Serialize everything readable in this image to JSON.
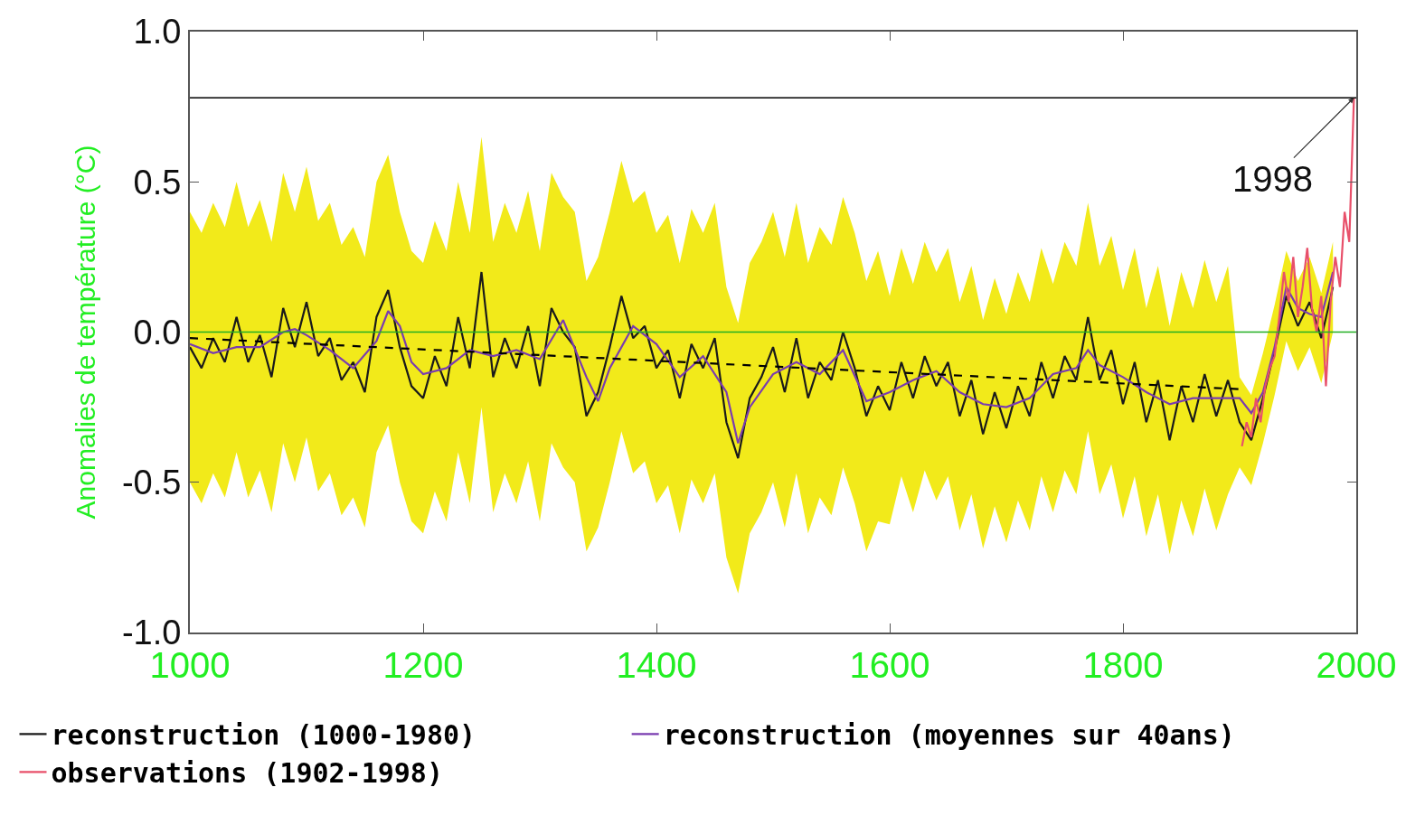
{
  "chart_data": {
    "type": "line",
    "ylabel": "Anomalies de température (°C)",
    "xlim": [
      1000,
      2000
    ],
    "xticks": [
      1000,
      1200,
      1400,
      1600,
      1800,
      2000
    ],
    "ylim": [
      -1,
      1
    ],
    "yticks": [
      {
        "value": -1,
        "label": "-1.0"
      },
      {
        "value": -0.5,
        "label": "-0.5"
      },
      {
        "value": 0,
        "label": "0.0"
      },
      {
        "value": 0.5,
        "label": "0.5"
      },
      {
        "value": 1,
        "label": "1.0"
      }
    ],
    "grid": false,
    "legend": "bottom",
    "marker": "none",
    "line_style": "solid",
    "x": [
      1000,
      1010,
      1020,
      1030,
      1040,
      1050,
      1060,
      1070,
      1080,
      1090,
      1100,
      1110,
      1120,
      1130,
      1140,
      1150,
      1160,
      1170,
      1180,
      1190,
      1200,
      1210,
      1220,
      1230,
      1240,
      1250,
      1260,
      1270,
      1280,
      1290,
      1300,
      1310,
      1320,
      1330,
      1340,
      1350,
      1360,
      1370,
      1380,
      1390,
      1400,
      1410,
      1420,
      1430,
      1440,
      1450,
      1460,
      1470,
      1480,
      1490,
      1500,
      1510,
      1520,
      1530,
      1540,
      1550,
      1560,
      1570,
      1580,
      1590,
      1600,
      1610,
      1620,
      1630,
      1640,
      1650,
      1660,
      1670,
      1680,
      1690,
      1700,
      1710,
      1720,
      1730,
      1740,
      1750,
      1760,
      1770,
      1780,
      1790,
      1800,
      1810,
      1820,
      1830,
      1840,
      1850,
      1860,
      1870,
      1880,
      1890,
      1900,
      1910,
      1920,
      1930,
      1940,
      1950,
      1960,
      1970,
      1980
    ],
    "series": [
      {
        "name": "reconstruction (1000-1980)",
        "color": "#1a1a1a",
        "values": [
          -0.05,
          -0.12,
          -0.02,
          -0.1,
          0.05,
          -0.1,
          -0.01,
          -0.15,
          0.08,
          -0.05,
          0.1,
          -0.08,
          -0.02,
          -0.16,
          -0.1,
          -0.2,
          0.05,
          0.14,
          -0.05,
          -0.18,
          -0.22,
          -0.08,
          -0.18,
          0.05,
          -0.12,
          0.2,
          -0.15,
          -0.02,
          -0.12,
          0.02,
          -0.18,
          0.08,
          0.0,
          -0.05,
          -0.28,
          -0.2,
          -0.05,
          0.12,
          -0.02,
          0.02,
          -0.12,
          -0.06,
          -0.22,
          -0.04,
          -0.12,
          -0.02,
          -0.3,
          -0.42,
          -0.22,
          -0.15,
          -0.05,
          -0.2,
          -0.02,
          -0.22,
          -0.1,
          -0.16,
          0.0,
          -0.12,
          -0.28,
          -0.18,
          -0.26,
          -0.1,
          -0.22,
          -0.08,
          -0.18,
          -0.1,
          -0.28,
          -0.16,
          -0.34,
          -0.2,
          -0.32,
          -0.18,
          -0.28,
          -0.1,
          -0.22,
          -0.08,
          -0.16,
          0.05,
          -0.16,
          -0.06,
          -0.24,
          -0.1,
          -0.3,
          -0.16,
          -0.36,
          -0.18,
          -0.3,
          -0.14,
          -0.28,
          -0.16,
          -0.3,
          -0.36,
          -0.22,
          -0.06,
          0.12,
          0.02,
          0.1,
          -0.02,
          0.15
        ],
        "upper": [
          0.4,
          0.33,
          0.43,
          0.35,
          0.5,
          0.35,
          0.44,
          0.3,
          0.53,
          0.4,
          0.55,
          0.37,
          0.43,
          0.29,
          0.35,
          0.25,
          0.5,
          0.59,
          0.4,
          0.27,
          0.23,
          0.37,
          0.27,
          0.5,
          0.33,
          0.65,
          0.3,
          0.43,
          0.33,
          0.47,
          0.27,
          0.53,
          0.45,
          0.4,
          0.17,
          0.25,
          0.4,
          0.57,
          0.43,
          0.47,
          0.33,
          0.39,
          0.23,
          0.41,
          0.33,
          0.43,
          0.15,
          0.03,
          0.23,
          0.3,
          0.4,
          0.25,
          0.43,
          0.23,
          0.35,
          0.29,
          0.45,
          0.33,
          0.17,
          0.27,
          0.12,
          0.28,
          0.16,
          0.3,
          0.2,
          0.28,
          0.1,
          0.22,
          0.04,
          0.18,
          0.06,
          0.2,
          0.1,
          0.28,
          0.16,
          0.3,
          0.22,
          0.43,
          0.22,
          0.32,
          0.14,
          0.28,
          0.08,
          0.22,
          0.02,
          0.2,
          0.08,
          0.24,
          0.1,
          0.22,
          -0.15,
          -0.21,
          -0.07,
          0.09,
          0.27,
          0.17,
          0.25,
          0.13,
          0.3
        ],
        "lower": [
          -0.5,
          -0.57,
          -0.47,
          -0.55,
          -0.4,
          -0.55,
          -0.46,
          -0.6,
          -0.37,
          -0.5,
          -0.35,
          -0.53,
          -0.47,
          -0.61,
          -0.55,
          -0.65,
          -0.4,
          -0.31,
          -0.5,
          -0.63,
          -0.67,
          -0.53,
          -0.63,
          -0.4,
          -0.57,
          -0.25,
          -0.6,
          -0.47,
          -0.57,
          -0.43,
          -0.63,
          -0.37,
          -0.45,
          -0.5,
          -0.73,
          -0.65,
          -0.5,
          -0.33,
          -0.47,
          -0.43,
          -0.57,
          -0.51,
          -0.67,
          -0.49,
          -0.57,
          -0.47,
          -0.75,
          -0.87,
          -0.67,
          -0.6,
          -0.5,
          -0.65,
          -0.47,
          -0.67,
          -0.55,
          -0.61,
          -0.45,
          -0.57,
          -0.73,
          -0.63,
          -0.64,
          -0.48,
          -0.6,
          -0.46,
          -0.56,
          -0.48,
          -0.66,
          -0.54,
          -0.72,
          -0.58,
          -0.7,
          -0.56,
          -0.66,
          -0.48,
          -0.6,
          -0.46,
          -0.54,
          -0.33,
          -0.54,
          -0.44,
          -0.62,
          -0.48,
          -0.68,
          -0.54,
          -0.74,
          -0.56,
          -0.68,
          -0.52,
          -0.66,
          -0.54,
          -0.45,
          -0.51,
          -0.37,
          -0.21,
          -0.03,
          -0.13,
          -0.05,
          -0.17,
          0.0
        ]
      },
      {
        "name": "reconstruction (moyennes sur 40ans)",
        "color": "#7a3cb0",
        "x": [
          1000,
          1020,
          1040,
          1060,
          1080,
          1090,
          1100,
          1120,
          1140,
          1160,
          1170,
          1180,
          1190,
          1200,
          1220,
          1240,
          1260,
          1280,
          1300,
          1320,
          1340,
          1350,
          1360,
          1380,
          1400,
          1420,
          1440,
          1460,
          1470,
          1480,
          1500,
          1520,
          1540,
          1560,
          1580,
          1600,
          1620,
          1640,
          1660,
          1680,
          1700,
          1720,
          1740,
          1760,
          1770,
          1780,
          1800,
          1820,
          1840,
          1860,
          1880,
          1900,
          1910,
          1920,
          1930,
          1940,
          1950,
          1960,
          1970,
          1980
        ],
        "values": [
          -0.04,
          -0.07,
          -0.05,
          -0.05,
          0.0,
          0.01,
          -0.01,
          -0.06,
          -0.12,
          -0.03,
          0.07,
          0.02,
          -0.1,
          -0.14,
          -0.12,
          -0.06,
          -0.08,
          -0.06,
          -0.09,
          0.04,
          -0.15,
          -0.23,
          -0.12,
          0.02,
          -0.04,
          -0.15,
          -0.08,
          -0.2,
          -0.37,
          -0.25,
          -0.14,
          -0.1,
          -0.14,
          -0.06,
          -0.23,
          -0.2,
          -0.16,
          -0.13,
          -0.2,
          -0.24,
          -0.25,
          -0.22,
          -0.14,
          -0.12,
          -0.06,
          -0.11,
          -0.15,
          -0.2,
          -0.24,
          -0.22,
          -0.22,
          -0.22,
          -0.27,
          -0.2,
          -0.05,
          0.15,
          0.08,
          0.06,
          0.05,
          0.2
        ]
      },
      {
        "name": "observations (1902-1998)",
        "color": "#e8506a",
        "x": [
          1902,
          1906,
          1910,
          1914,
          1918,
          1922,
          1926,
          1930,
          1934,
          1938,
          1942,
          1946,
          1950,
          1954,
          1958,
          1962,
          1966,
          1970,
          1974,
          1978,
          1982,
          1986,
          1990,
          1994,
          1998
        ],
        "values": [
          -0.38,
          -0.3,
          -0.35,
          -0.22,
          -0.3,
          -0.18,
          -0.12,
          -0.08,
          0.05,
          0.2,
          0.1,
          0.25,
          0.05,
          0.15,
          0.28,
          0.08,
          0.0,
          0.12,
          -0.18,
          0.1,
          0.25,
          0.15,
          0.4,
          0.3,
          0.78
        ]
      },
      {
        "type": "line",
        "color": "#000000",
        "line_style": "dashed",
        "x": [
          1000,
          1900
        ],
        "values": [
          -0.02,
          -0.19
        ]
      }
    ],
    "ref_lines": [
      {
        "axis": "y",
        "value": 0,
        "color": "#22b022"
      },
      {
        "axis": "y",
        "value": 0.78,
        "color": "#000000"
      }
    ],
    "annotations": [
      {
        "text": "1998",
        "x": 1998,
        "y": 0.78
      }
    ]
  }
}
